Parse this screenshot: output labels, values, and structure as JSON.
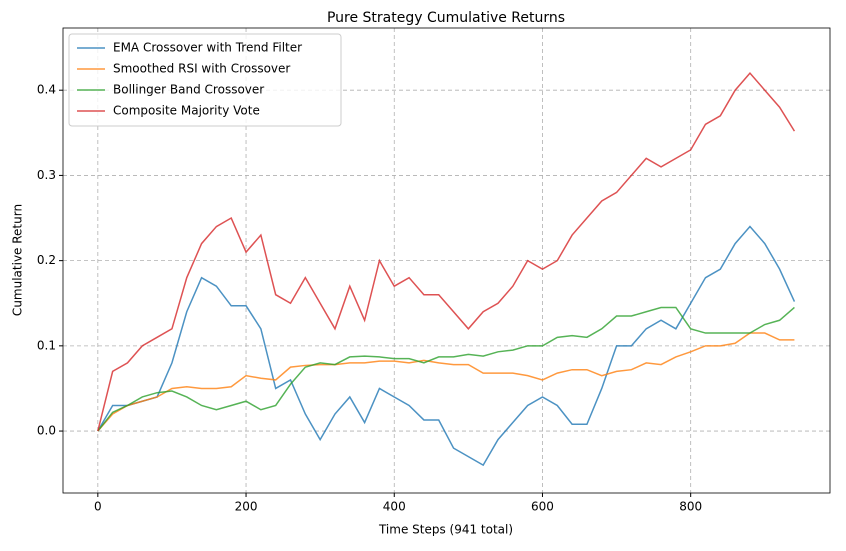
{
  "chart_data": {
    "type": "line",
    "title": "Pure Strategy Cumulative Returns",
    "x_label": "Time Steps (941 total)",
    "y_label": "Cumulative Return",
    "x": [
      0,
      20,
      40,
      60,
      80,
      100,
      120,
      140,
      160,
      180,
      200,
      220,
      240,
      260,
      280,
      300,
      320,
      340,
      360,
      380,
      400,
      420,
      440,
      460,
      480,
      500,
      520,
      540,
      560,
      580,
      600,
      620,
      640,
      660,
      680,
      700,
      720,
      740,
      760,
      780,
      800,
      820,
      840,
      860,
      880,
      900,
      920,
      940
    ],
    "series": [
      {
        "name": "EMA Crossover with Trend Filter",
        "color": "#1f77b4",
        "values": [
          0,
          0.03,
          0.03,
          0.035,
          0.04,
          0.08,
          0.14,
          0.18,
          0.17,
          0.147,
          0.147,
          0.12,
          0.05,
          0.06,
          0.02,
          -0.01,
          0.02,
          0.04,
          0.01,
          0.05,
          0.04,
          0.03,
          0.013,
          0.013,
          -0.02,
          -0.03,
          -0.04,
          -0.01,
          0.01,
          0.03,
          0.04,
          0.03,
          0.008,
          0.008,
          0.05,
          0.1,
          0.1,
          0.12,
          0.13,
          0.12,
          0.15,
          0.18,
          0.19,
          0.22,
          0.24,
          0.22,
          0.19,
          0.152
        ]
      },
      {
        "name": "Smoothed RSI with Crossover",
        "color": "#ff7f0e",
        "values": [
          0,
          0.02,
          0.03,
          0.035,
          0.04,
          0.05,
          0.052,
          0.05,
          0.05,
          0.052,
          0.065,
          0.062,
          0.06,
          0.075,
          0.077,
          0.078,
          0.078,
          0.08,
          0.08,
          0.082,
          0.082,
          0.08,
          0.083,
          0.08,
          0.078,
          0.078,
          0.068,
          0.068,
          0.068,
          0.065,
          0.06,
          0.068,
          0.072,
          0.072,
          0.065,
          0.07,
          0.072,
          0.08,
          0.078,
          0.087,
          0.093,
          0.1,
          0.1,
          0.103,
          0.115,
          0.115,
          0.107,
          0.107
        ]
      },
      {
        "name": "Bollinger Band Crossover",
        "color": "#2ca02c",
        "values": [
          0,
          0.022,
          0.03,
          0.04,
          0.045,
          0.047,
          0.04,
          0.03,
          0.025,
          0.03,
          0.035,
          0.025,
          0.03,
          0.055,
          0.075,
          0.08,
          0.078,
          0.087,
          0.088,
          0.087,
          0.085,
          0.085,
          0.08,
          0.087,
          0.087,
          0.09,
          0.088,
          0.093,
          0.095,
          0.1,
          0.1,
          0.11,
          0.112,
          0.11,
          0.12,
          0.135,
          0.135,
          0.14,
          0.145,
          0.145,
          0.12,
          0.115,
          0.115,
          0.115,
          0.115,
          0.125,
          0.13,
          0.145
        ]
      },
      {
        "name": "Composite Majority Vote",
        "color": "#d62728",
        "values": [
          0,
          0.07,
          0.08,
          0.1,
          0.11,
          0.12,
          0.18,
          0.22,
          0.24,
          0.25,
          0.21,
          0.23,
          0.16,
          0.15,
          0.18,
          0.15,
          0.12,
          0.17,
          0.13,
          0.2,
          0.17,
          0.18,
          0.16,
          0.16,
          0.14,
          0.12,
          0.14,
          0.15,
          0.17,
          0.2,
          0.19,
          0.2,
          0.23,
          0.25,
          0.27,
          0.28,
          0.3,
          0.32,
          0.31,
          0.32,
          0.33,
          0.36,
          0.37,
          0.4,
          0.42,
          0.4,
          0.38,
          0.352
        ]
      }
    ],
    "xlim": [
      -47,
      988
    ],
    "ylim": [
      -0.0727,
      0.473
    ],
    "xticks": [
      0,
      200,
      400,
      600,
      800
    ],
    "yticks": [
      {
        "value": 0,
        "label": "0.0"
      },
      0.1,
      0.2,
      0.3,
      0.4
    ],
    "grid": true,
    "legend": "upper left"
  }
}
